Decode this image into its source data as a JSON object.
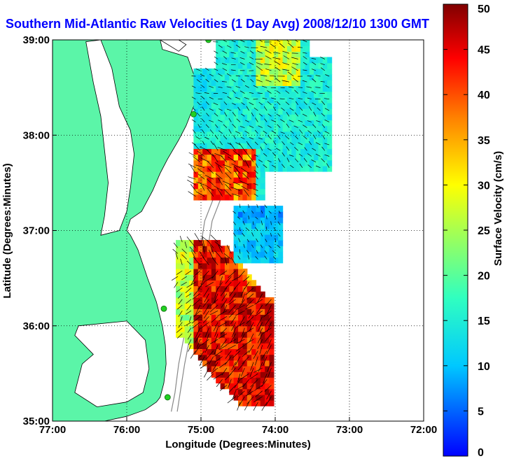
{
  "chart_data": {
    "type": "heatmap",
    "title": "Southern Mid-Atlantic Raw Velocities (1 Day Avg) 2008/12/10 1300 GMT",
    "xlabel": "Longitude (Degrees:Minutes)",
    "ylabel": "Latitude (Degrees:Minutes)",
    "xlim": [
      -77,
      -72
    ],
    "ylim": [
      35,
      39
    ],
    "x_ticks": [
      {
        "value": -77,
        "label": "77:00"
      },
      {
        "value": -76,
        "label": "76:00"
      },
      {
        "value": -75,
        "label": "75:00"
      },
      {
        "value": -74,
        "label": "74:00"
      },
      {
        "value": -73,
        "label": "73:00"
      },
      {
        "value": -72,
        "label": "72:00"
      }
    ],
    "y_ticks": [
      {
        "value": 35,
        "label": "35:00"
      },
      {
        "value": 36,
        "label": "36:00"
      },
      {
        "value": 37,
        "label": "37:00"
      },
      {
        "value": 38,
        "label": "38:00"
      },
      {
        "value": 39,
        "label": "39:00"
      }
    ],
    "grid": true,
    "colorbar": {
      "label": "Surface Velocity (cm/s)",
      "range": [
        0,
        50
      ],
      "ticks": [
        0,
        5,
        10,
        15,
        20,
        25,
        30,
        35,
        40,
        45,
        50
      ],
      "colormap": "jet"
    },
    "colors": {
      "land": "#5bf5a8",
      "title": "#0000ff",
      "station": "#22d022"
    },
    "stations": [
      {
        "lon": -74.9,
        "lat": 39.0
      },
      {
        "lon": -75.1,
        "lat": 38.22
      },
      {
        "lon": -75.5,
        "lat": 36.18
      },
      {
        "lon": -75.45,
        "lat": 35.25
      }
    ],
    "velocity_regions": [
      {
        "name": "north",
        "lon_range": [
          -75.15,
          -73.25
        ],
        "lat_range": [
          37.25,
          38.98
        ],
        "mean_speed": 12
      },
      {
        "name": "north-south-edge",
        "lon_range": [
          -75.1,
          -74.3
        ],
        "lat_range": [
          37.3,
          37.9
        ],
        "mean_speed": 40
      },
      {
        "name": "middle",
        "lon_range": [
          -74.6,
          -73.95
        ],
        "lat_range": [
          36.6,
          37.25
        ],
        "mean_speed": 10
      },
      {
        "name": "south",
        "lon_range": [
          -75.35,
          -74.05
        ],
        "lat_range": [
          35.12,
          36.85
        ],
        "mean_speed": 42
      }
    ]
  }
}
